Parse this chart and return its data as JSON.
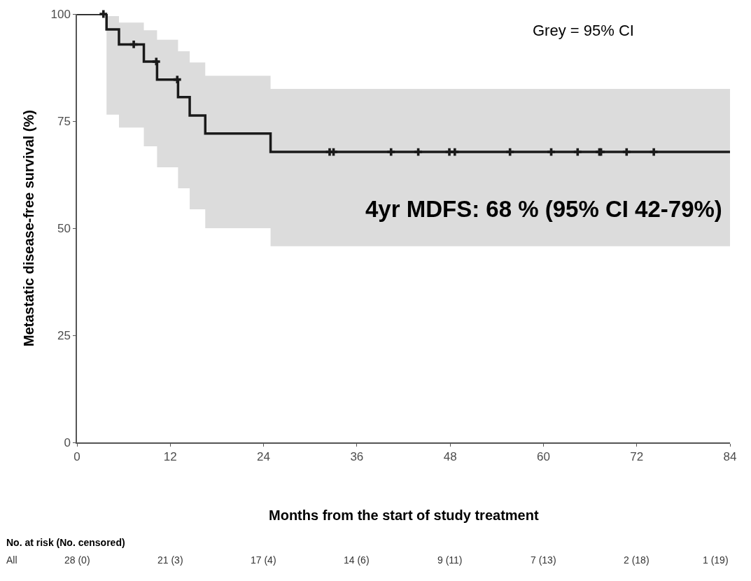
{
  "chart_data": {
    "type": "step",
    "xlabel": "Months from the start of study treatment",
    "ylabel": "Metastatic disease-free survival (%)",
    "xlim": [
      0,
      84
    ],
    "xticks": [
      0,
      12,
      24,
      36,
      48,
      60,
      72,
      84
    ],
    "ylim": [
      0,
      100
    ],
    "yticks": [
      0,
      25,
      50,
      75,
      100
    ],
    "series": [
      {
        "color": "#1a1a1a",
        "marker": "none",
        "line_style": "solid",
        "x": [
          0,
          3.8,
          5.4,
          8.6,
          10.3,
          13.0,
          14.5,
          16.5,
          24.9,
          84
        ],
        "values": [
          100,
          96.4,
          92.9,
          88.9,
          84.7,
          80.6,
          76.3,
          72.1,
          67.8,
          67.8
        ],
        "lower": [
          null,
          76.5,
          73.5,
          69.1,
          64.2,
          59.3,
          54.4,
          50.0,
          45.8,
          45.8
        ],
        "upper": [
          null,
          99.5,
          98.0,
          96.2,
          94.0,
          91.3,
          88.7,
          85.6,
          82.5,
          82.5
        ]
      },
      {
        "type": "scatter",
        "color": "#1a1a1a",
        "marker": "cross",
        "x": [
          3.4,
          7.3,
          10.2,
          12.9,
          32.5,
          33.0,
          40.4,
          43.9,
          47.9,
          48.6,
          55.7,
          61.0,
          64.4,
          67.2,
          67.4,
          70.7,
          74.2
        ],
        "values": [
          100,
          92.9,
          88.9,
          84.7,
          67.8,
          67.8,
          67.8,
          67.8,
          67.8,
          67.8,
          67.8,
          67.8,
          67.8,
          67.8,
          67.8,
          67.8,
          67.8
        ]
      }
    ],
    "annotations": [
      "Grey = 95% CI",
      "4yr MDFS: 68 % (95% CI 42-79%)",
      "No. at risk (No. censored)",
      "All",
      "28 (0)",
      "21 (3)",
      "17 (4)",
      "14 (6)",
      "9 (11)",
      "7 (13)",
      "2 (18)",
      "1 (19)"
    ]
  }
}
